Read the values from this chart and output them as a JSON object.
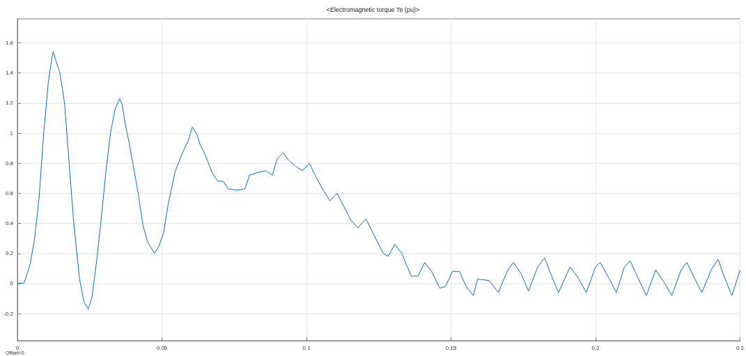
{
  "chart_data": {
    "type": "line",
    "title": "<Electromagnetic torque Te (pu)>",
    "annotations": [
      "Offset=0"
    ],
    "series": [
      {
        "color": "#0072bd",
        "x": [
          0,
          0.0023,
          0.0043,
          0.0059,
          0.0075,
          0.0091,
          0.0107,
          0.0119,
          0.0124,
          0.0135,
          0.0147,
          0.0163,
          0.0171,
          0.0179,
          0.0195,
          0.0215,
          0.023,
          0.0245,
          0.0258,
          0.0274,
          0.029,
          0.0306,
          0.0322,
          0.0338,
          0.0354,
          0.0362,
          0.0374,
          0.0386,
          0.0402,
          0.0418,
          0.0434,
          0.045,
          0.0474,
          0.049,
          0.0506,
          0.0522,
          0.0545,
          0.0569,
          0.0593,
          0.0605,
          0.0621,
          0.0633,
          0.0649,
          0.0673,
          0.0693,
          0.0713,
          0.0729,
          0.0761,
          0.0787,
          0.0803,
          0.0835,
          0.0859,
          0.0882,
          0.0899,
          0.0919,
          0.0938,
          0.0962,
          0.0986,
          0.101,
          0.103,
          0.1058,
          0.1082,
          0.1106,
          0.113,
          0.1154,
          0.1178,
          0.1206,
          0.1234,
          0.1266,
          0.1282,
          0.1306,
          0.133,
          0.1362,
          0.1386,
          0.1409,
          0.1433,
          0.1461,
          0.1481,
          0.1505,
          0.1529,
          0.1553,
          0.1577,
          0.1592,
          0.1632,
          0.1664,
          0.1696,
          0.1716,
          0.1744,
          0.1768,
          0.18,
          0.1824,
          0.1848,
          0.1872,
          0.1912,
          0.1936,
          0.1968,
          0.2,
          0.2016,
          0.2048,
          0.2072,
          0.21,
          0.212,
          0.2144,
          0.2176,
          0.2208,
          0.224,
          0.2264,
          0.2296,
          0.2316,
          0.2344,
          0.2368,
          0.24,
          0.2424,
          0.2448,
          0.2472,
          0.25
        ],
        "values": [
          0,
          0.003,
          0.12,
          0.29,
          0.57,
          1.0,
          1.34,
          1.5,
          1.54,
          1.47,
          1.4,
          1.2,
          1.0,
          0.8,
          0.4,
          0.03,
          -0.12,
          -0.17,
          -0.09,
          0.15,
          0.43,
          0.74,
          1.0,
          1.16,
          1.23,
          1.19,
          1.05,
          0.94,
          0.77,
          0.6,
          0.39,
          0.28,
          0.2,
          0.25,
          0.34,
          0.53,
          0.74,
          0.86,
          0.96,
          1.04,
          0.99,
          0.92,
          0.86,
          0.74,
          0.68,
          0.68,
          0.63,
          0.62,
          0.63,
          0.72,
          0.74,
          0.75,
          0.72,
          0.83,
          0.87,
          0.82,
          0.78,
          0.75,
          0.8,
          0.72,
          0.62,
          0.55,
          0.6,
          0.51,
          0.42,
          0.37,
          0.43,
          0.32,
          0.2,
          0.18,
          0.26,
          0.2,
          0.05,
          0.05,
          0.14,
          0.08,
          -0.03,
          -0.02,
          0.08,
          0.08,
          -0.02,
          -0.08,
          0.03,
          0.02,
          -0.06,
          0.09,
          0.14,
          0.06,
          -0.05,
          0.11,
          0.17,
          0.05,
          -0.06,
          0.11,
          0.05,
          -0.06,
          0.11,
          0.14,
          0.03,
          -0.06,
          0.11,
          0.15,
          0.05,
          -0.08,
          0.09,
          0,
          -0.08,
          0.09,
          0.14,
          0.03,
          -0.06,
          0.09,
          0.16,
          0.03,
          -0.08,
          0.09
        ]
      }
    ],
    "xlim": [
      0,
      0.25
    ],
    "xticks": [
      0,
      0.05,
      0.1,
      0.15,
      0.2,
      {
        "value": 0.25,
        "label": "0.2"
      }
    ],
    "ylim": [
      -0.38,
      1.76
    ],
    "yticks": [
      -0.2,
      0,
      0.2,
      0.4,
      0.6,
      0.8,
      1,
      1.2,
      1.4,
      1.6
    ],
    "grid": true,
    "marker": "none",
    "line_style": "solid"
  }
}
